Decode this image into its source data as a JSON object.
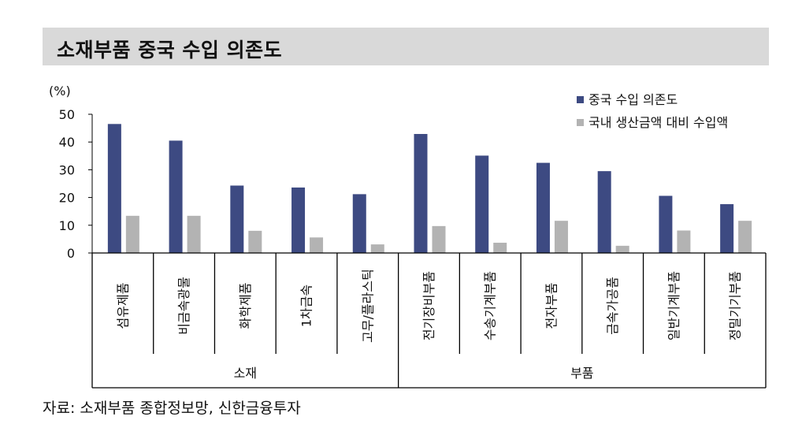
{
  "title": "소재부품 중국 수입 의존도",
  "source": "자료: 소재부품 종합정보망, 신한금융투자",
  "colors": {
    "series1": "#3d4a82",
    "series2": "#b3b3b3",
    "title_bg": "#d9d9d9",
    "axis": "#000000"
  },
  "chart_data": {
    "type": "bar",
    "unit_label": "(%)",
    "categories": [
      "섬유제품",
      "비금속광물",
      "화학제품",
      "1차금속",
      "고무/플라스틱",
      "전기장비부품",
      "수송기계부품",
      "전자부품",
      "금속가공품",
      "일반기계부품",
      "정밀기기부품"
    ],
    "groups": [
      {
        "label": "소재",
        "categories": [
          "섬유제품",
          "비금속광물",
          "화학제품",
          "1차금속",
          "고무/플라스틱"
        ]
      },
      {
        "label": "부품",
        "categories": [
          "전기장비부품",
          "수송기계부품",
          "전자부품",
          "금속가공품",
          "일반기계부품",
          "정밀기기부품"
        ]
      }
    ],
    "series": [
      {
        "name": "중국 수입 의존도",
        "values": [
          46.5,
          40.5,
          24.3,
          23.6,
          21.2,
          42.9,
          35.1,
          32.5,
          29.5,
          20.6,
          17.6
        ]
      },
      {
        "name": "국내 생산금액 대비 수입액",
        "values": [
          13.4,
          13.4,
          8.0,
          5.6,
          3.1,
          9.7,
          3.7,
          11.6,
          2.6,
          8.1,
          11.6
        ]
      }
    ],
    "yticks": [
      0,
      10,
      20,
      30,
      40,
      50
    ],
    "ylim": [
      0,
      50
    ],
    "legend_position": "top-right",
    "grid": false
  }
}
